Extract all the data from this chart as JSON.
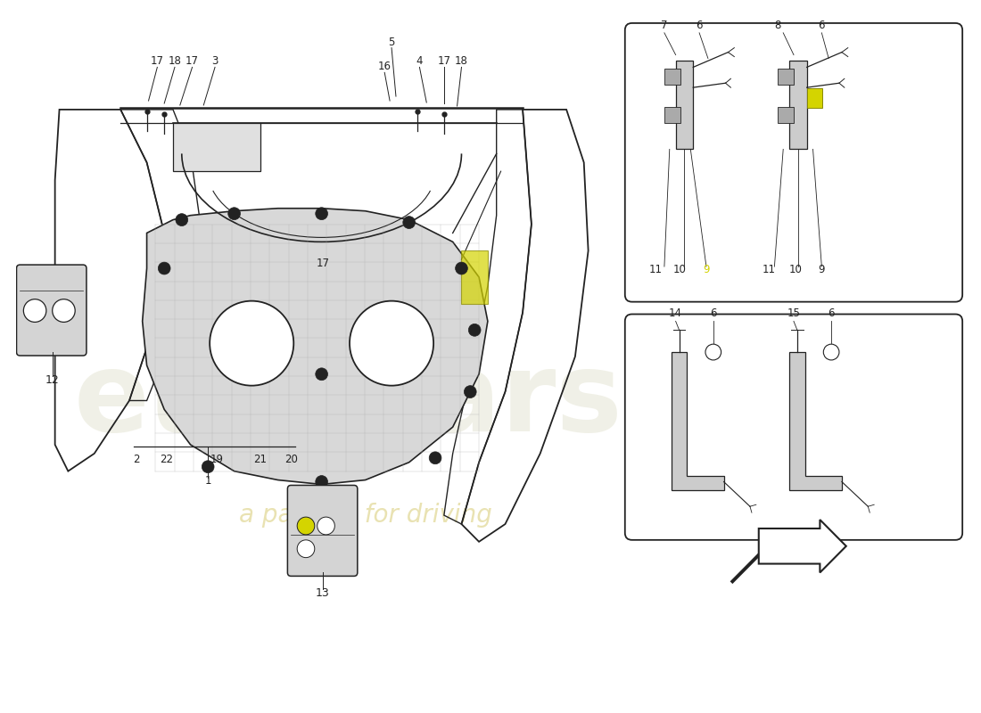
{
  "bg_color": "#ffffff",
  "line_color": "#222222",
  "watermark_color": "#d0d0b0",
  "highlight_yellow": "#d4d400"
}
